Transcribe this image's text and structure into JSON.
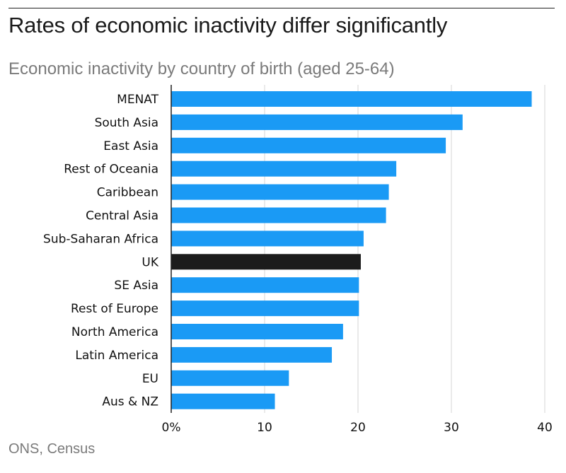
{
  "title": "Rates of economic inactivity differ significantly",
  "subtitle": "Economic inactivity by country of birth (aged 25-64)",
  "source": "ONS, Census",
  "colors": {
    "bar": "#1a9af5",
    "highlight": "#1c1c1c",
    "grid": "#e4e4e4",
    "axis": "#222222"
  },
  "chart_data": {
    "type": "bar",
    "orientation": "horizontal",
    "categories": [
      "MENAT",
      "South Asia",
      "East Asia",
      "Rest of Oceania",
      "Caribbean",
      "Central Asia",
      "Sub-Saharan Africa",
      "UK",
      "SE Asia",
      "Rest of Europe",
      "North America",
      "Latin America",
      "EU",
      "Aus & NZ"
    ],
    "values": [
      38.6,
      31.2,
      29.4,
      24.1,
      23.3,
      23.0,
      20.6,
      20.3,
      20.1,
      20.1,
      18.4,
      17.2,
      12.6,
      11.1
    ],
    "highlight": [
      "UK"
    ],
    "xlim": [
      0,
      40
    ],
    "xticks": [
      0,
      10,
      20,
      30,
      40
    ],
    "xtick_labels": [
      "0%",
      "10",
      "20",
      "30",
      "40"
    ],
    "grid": true
  }
}
